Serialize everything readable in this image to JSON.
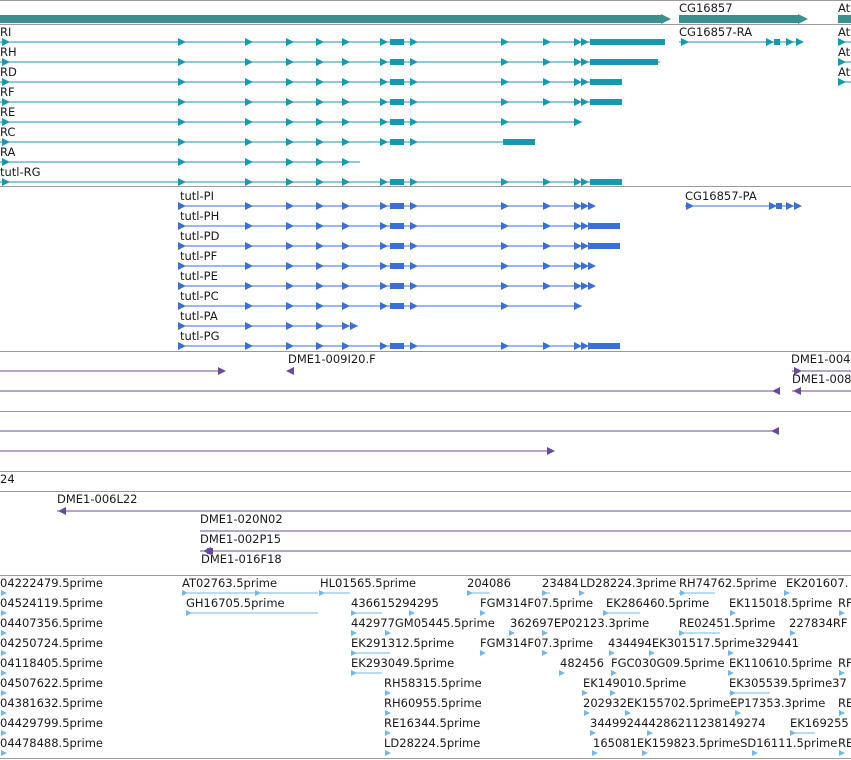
{
  "colors": {
    "mrna": "#1699ae",
    "protein": "#3a6fd6",
    "clone": "#6a4a9e",
    "est": "#79b6e0",
    "separator": "#9a9a9a",
    "gene_bar": "#3a8f8f"
  },
  "icons": {
    "arrow_right": "arrow-right-icon",
    "arrow_left": "arrow-left-icon"
  },
  "genes": [
    {
      "label": "CG16857"
    },
    {
      "label": "At"
    }
  ],
  "transcripts": [
    {
      "label": "RI"
    },
    {
      "label": "RH"
    },
    {
      "label": "RD"
    },
    {
      "label": "RF"
    },
    {
      "label": "RE"
    },
    {
      "label": "RC"
    },
    {
      "label": "RA"
    },
    {
      "label": "tutl-RG"
    },
    {
      "label": "CG16857-RA"
    },
    {
      "label": "At"
    },
    {
      "label": "At"
    },
    {
      "label": "At"
    }
  ],
  "proteins": [
    {
      "label": "tutl-PI"
    },
    {
      "label": "tutl-PH"
    },
    {
      "label": "tutl-PD"
    },
    {
      "label": "tutl-PF"
    },
    {
      "label": "tutl-PE"
    },
    {
      "label": "tutl-PC"
    },
    {
      "label": "tutl-PA"
    },
    {
      "label": "tutl-PG"
    },
    {
      "label": "CG16857-PA"
    }
  ],
  "clones": [
    {
      "label": "DME1-009I20.F"
    },
    {
      "label": "DME1-004"
    },
    {
      "label": "DME1-008"
    },
    {
      "label": "24"
    },
    {
      "label": "DME1-006L22"
    },
    {
      "label": "DME1-020N02"
    },
    {
      "label": "DME1-002P15"
    },
    {
      "label": "DME1-016F18"
    }
  ],
  "ests": [
    [
      "04222479.5prime",
      "AT02763.5prime",
      "HL01565.5prime",
      "204086",
      "23484",
      "LD28224.3prime",
      "RH74762.5prime",
      "EK201607."
    ],
    [
      "04524119.5prime",
      "GH16705.5prime",
      "436615294295",
      "FGM314F07.5prime",
      "EK286460.5prime",
      "EK115018.5prime",
      "RF"
    ],
    [
      "04407356.5prime",
      "442977GM05445.5prime",
      "362697EP02123.3prime",
      "RE02451.5prime",
      "227834RF"
    ],
    [
      "04250724.5prime",
      "EK291312.5prime",
      "FGM314F07.3prime",
      "434494EK301517.5prime329441"
    ],
    [
      "04118405.5prime",
      "EK293049.5prime",
      "482456",
      "FGC030G09.5prime",
      "EK110610.5prime",
      "RF"
    ],
    [
      "04507622.5prime",
      "RH58315.5prime",
      "EK149010.5prime",
      "EK305539.5prime37"
    ],
    [
      "04381632.5prime",
      "RH60955.5prime",
      "202932EK155702.5primeEP17353.3prime",
      "RE"
    ],
    [
      "04429799.5prime",
      "RE16344.5prime",
      "344992444286211238149274",
      "EK169255"
    ],
    [
      "04478488.5prime",
      "LD28224.5prime",
      "165081EK159823.5primeSD16111.5prime",
      "RE"
    ]
  ]
}
